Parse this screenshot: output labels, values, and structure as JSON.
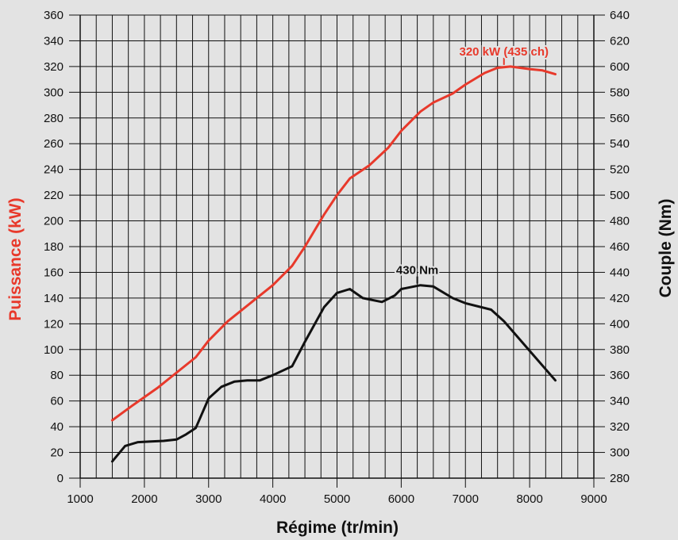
{
  "chart_data": {
    "type": "line",
    "xlabel": "Régime (tr/min)",
    "ylabel": "Puissance (kW)",
    "y2label": "Couple (Nm)",
    "xlim": [
      1000,
      9000
    ],
    "ylim": [
      0,
      360
    ],
    "y2lim": [
      280,
      640
    ],
    "grid": true,
    "x_ticks": [
      "1000",
      "2000",
      "3000",
      "4000",
      "5000",
      "6000",
      "7000",
      "8000",
      "9000"
    ],
    "y_ticks": [
      "0",
      "20",
      "40",
      "60",
      "80",
      "100",
      "120",
      "140",
      "160",
      "180",
      "200",
      "220",
      "240",
      "260",
      "280",
      "300",
      "320",
      "340",
      "360"
    ],
    "y2_ticks": [
      "280",
      "300",
      "320",
      "340",
      "360",
      "380",
      "400",
      "420",
      "440",
      "460",
      "480",
      "500",
      "520",
      "540",
      "560",
      "580",
      "600",
      "620",
      "640"
    ],
    "series": [
      {
        "axis": "left",
        "color": "#e8392b",
        "x": [
          1500,
          1800,
          2200,
          2500,
          2800,
          3000,
          3300,
          3700,
          4000,
          4300,
          4500,
          4800,
          5000,
          5200,
          5500,
          5800,
          6000,
          6300,
          6500,
          6800,
          7000,
          7300,
          7500,
          7700,
          8000,
          8200,
          8400
        ],
        "y": [
          45,
          56,
          70,
          82,
          94,
          107,
          122,
          138,
          150,
          165,
          180,
          205,
          220,
          233,
          243,
          257,
          270,
          285,
          292,
          299,
          306,
          315,
          319,
          320,
          318,
          317,
          314
        ]
      },
      {
        "axis": "right",
        "color": "#111111",
        "x": [
          1500,
          1700,
          1900,
          2100,
          2300,
          2500,
          2650,
          2800,
          3000,
          3200,
          3400,
          3600,
          3800,
          4000,
          4300,
          4500,
          4800,
          5000,
          5200,
          5400,
          5700,
          5900,
          6000,
          6300,
          6500,
          6800,
          7000,
          7400,
          7600,
          8000,
          8400
        ],
        "y": [
          293,
          305,
          308,
          308.5,
          309,
          310,
          314,
          319,
          342,
          351,
          355,
          356,
          356,
          360,
          367,
          386,
          413,
          424,
          427,
          420,
          417,
          422,
          427,
          430,
          429,
          420,
          416,
          411,
          402,
          379,
          356
        ]
      }
    ],
    "annotations": [
      {
        "text": "320 kW (435 ch)",
        "series": 0,
        "x": 7600,
        "y": 320,
        "color": "#e8392b"
      },
      {
        "text": "430 Nm",
        "series": 1,
        "x": 6250,
        "y": 430,
        "color": "#111111"
      }
    ]
  }
}
